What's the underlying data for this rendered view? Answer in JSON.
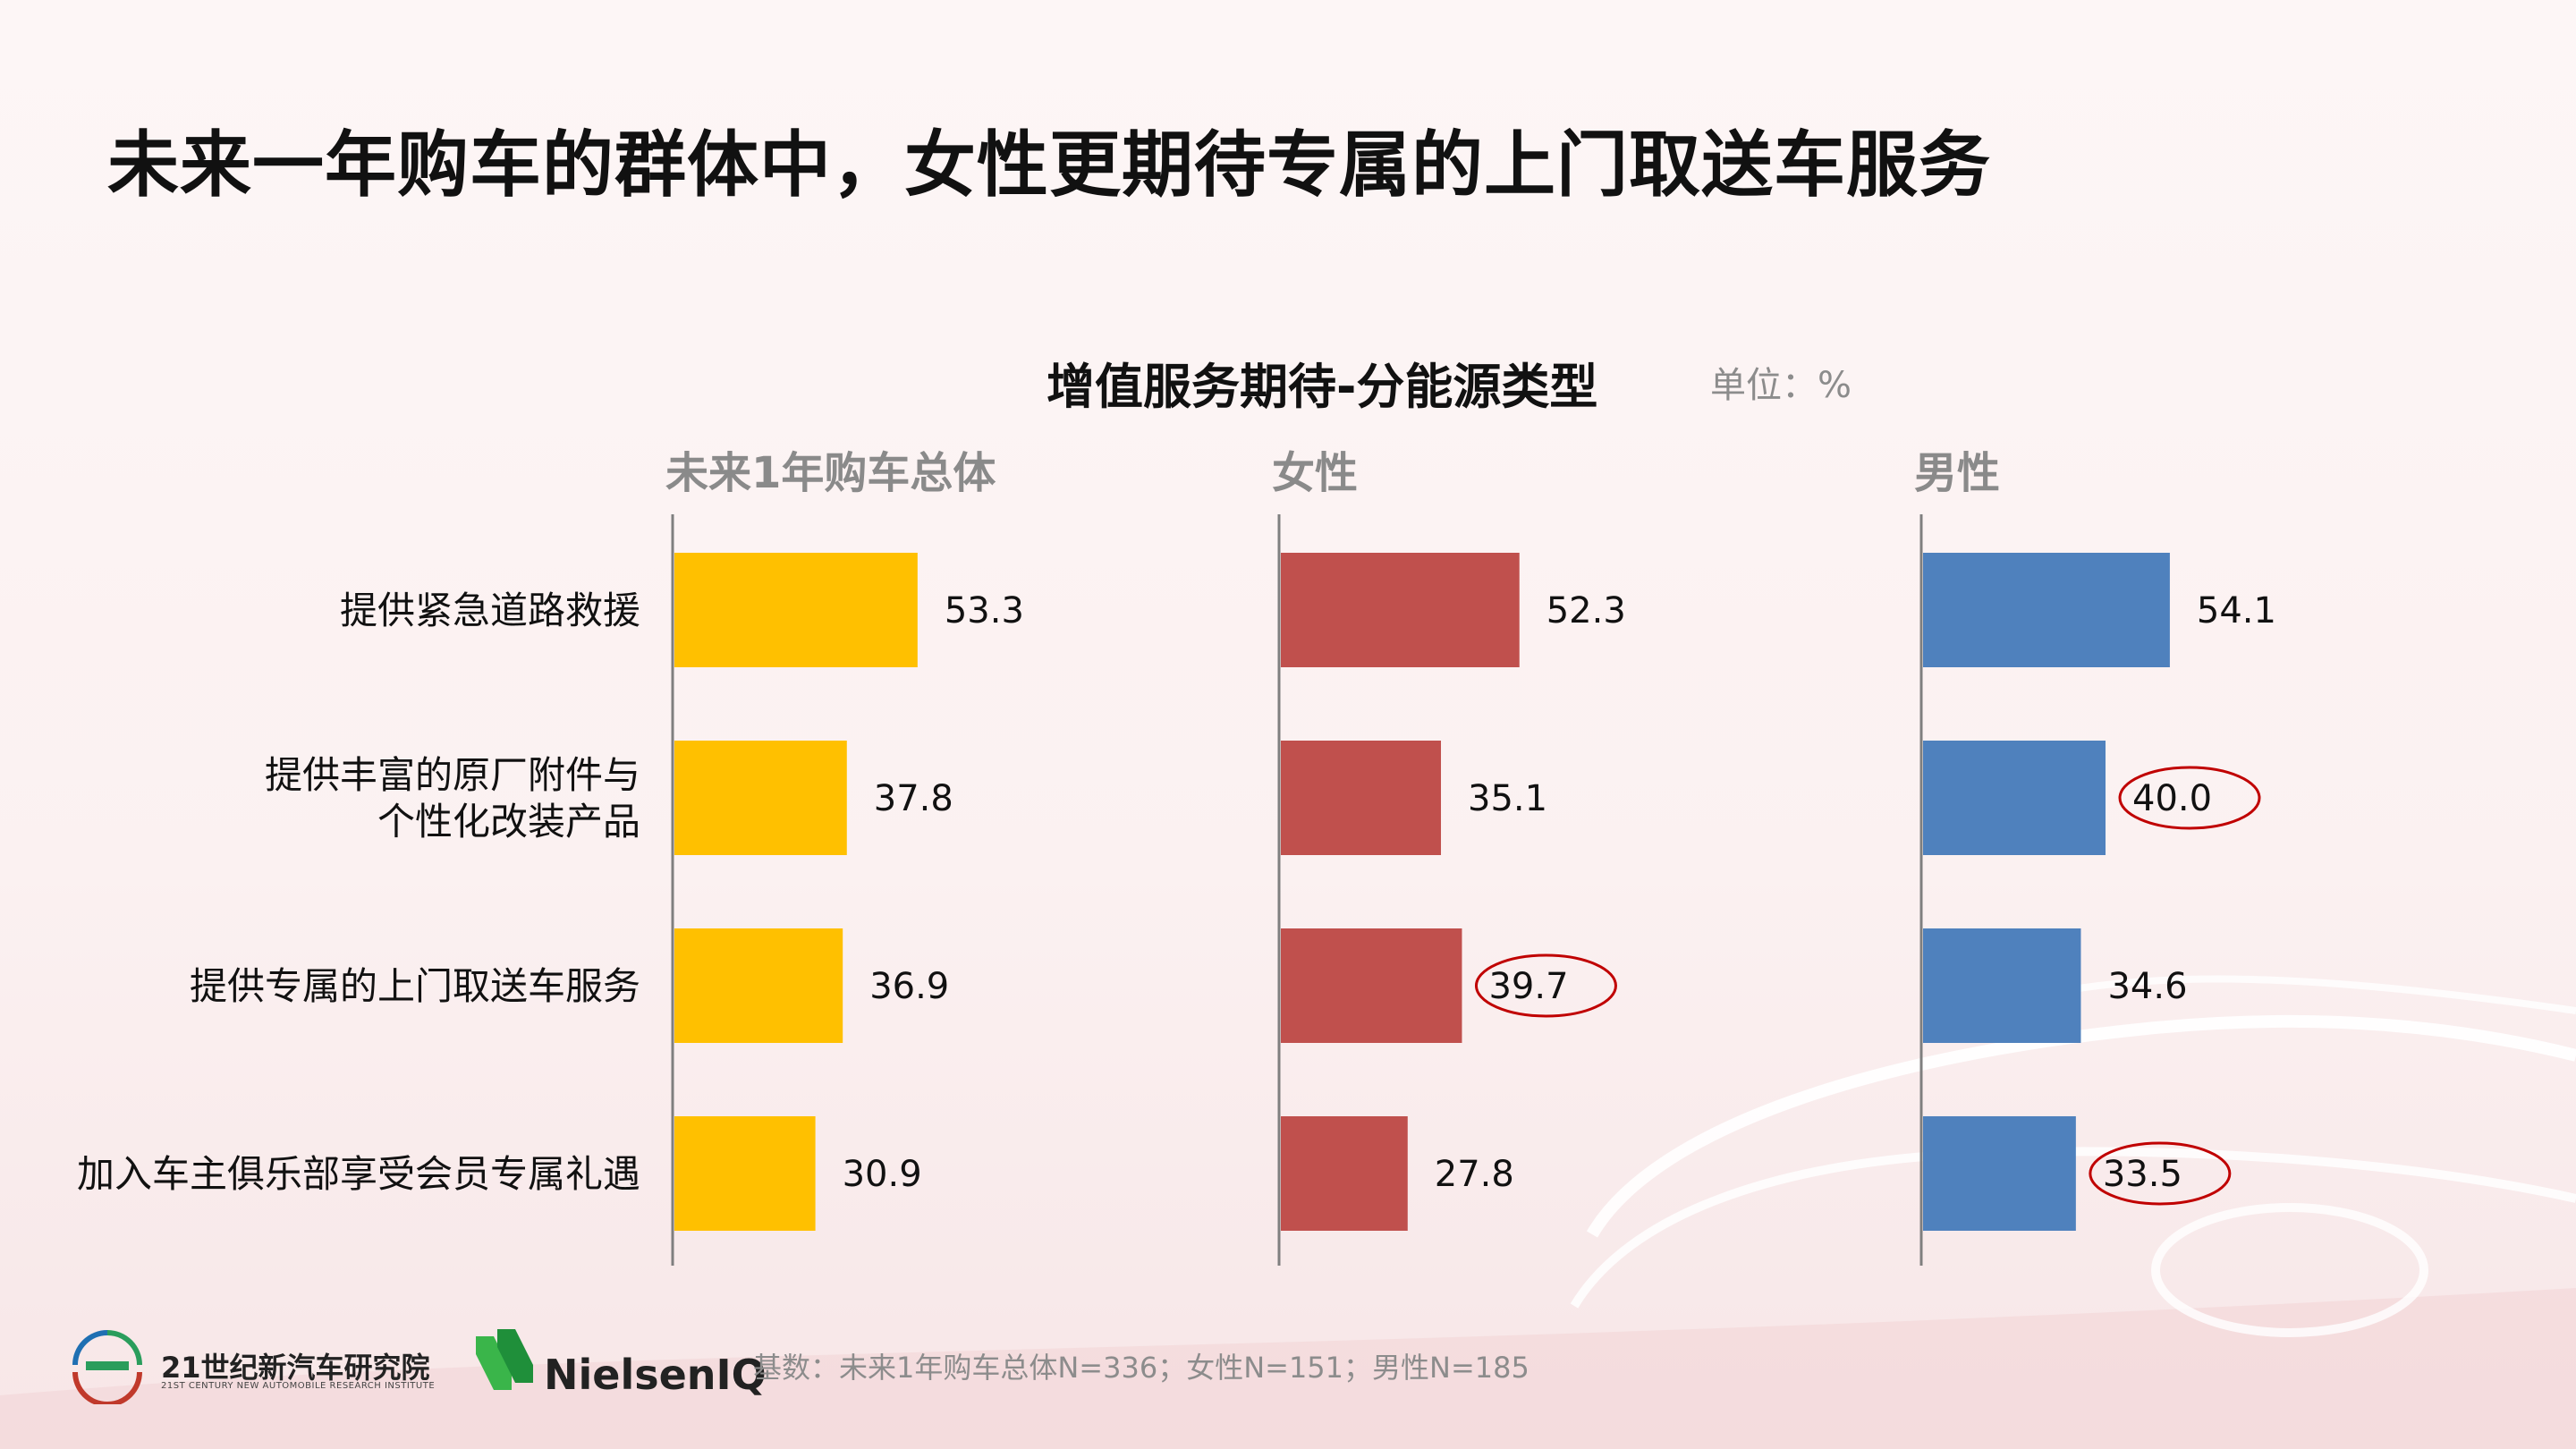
{
  "header": {
    "title": "未来一年购车的群体中，女性更期待专属的上门取送车服务"
  },
  "chart_header": {
    "title": "增值服务期待-分能源类型",
    "unit": "单位：%"
  },
  "chart_data": {
    "type": "bar",
    "orientation": "horizontal",
    "title": "增值服务期待-分能源类型",
    "categories": [
      "提供紧急道路救援",
      "提供丰富的原厂附件与个性化改装产品",
      "提供专属的上门取送车服务",
      "加入车主俱乐部享受会员专属礼遇"
    ],
    "category_lines": [
      [
        "提供紧急道路救援"
      ],
      [
        "提供丰富的原厂附件与",
        "个性化改装产品"
      ],
      [
        "提供专属的上门取送车服务"
      ],
      [
        "加入车主俱乐部享受会员专属礼遇"
      ]
    ],
    "series": [
      {
        "name": "未来1年购车总体",
        "values": [
          53.3,
          37.8,
          36.9,
          30.9
        ],
        "color": "#FFC000",
        "labels": [
          "53.3",
          "37.8",
          "36.9",
          "30.9"
        ],
        "highlighted": []
      },
      {
        "name": "女性",
        "values": [
          52.3,
          35.1,
          39.7,
          27.8
        ],
        "color": "#C0504D",
        "labels": [
          "52.3",
          "35.1",
          "39.7",
          "27.8"
        ],
        "highlighted": [
          2
        ]
      },
      {
        "name": "男性",
        "values": [
          54.1,
          40.0,
          34.6,
          33.5
        ],
        "color": "#4F81BD",
        "labels": [
          "54.1",
          "40.0",
          "34.6",
          "33.5"
        ],
        "highlighted": [
          1,
          3
        ]
      }
    ],
    "unit": "%",
    "highlight_color": "#C00000"
  },
  "footer": {
    "logo1_name": "21世纪新汽车研究院",
    "logo1_sub": "21ST CENTURY NEW AUTOMOBILE RESEARCH INSTITUTE",
    "logo2_name": "NielsenIQ",
    "base_note": "基数：未来1年购车总体N=336；女性N=151；男性N=185"
  }
}
